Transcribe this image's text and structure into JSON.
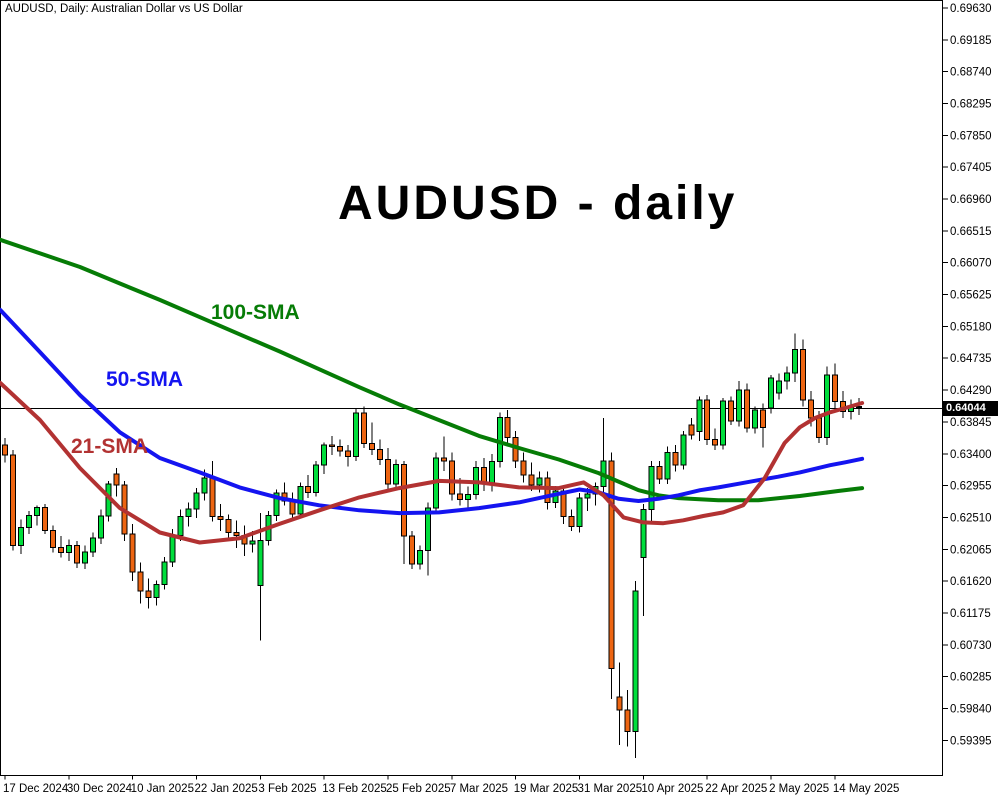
{
  "header": {
    "symbol_label": "AUDUSD, Daily:  Australian Dollar vs US Dollar"
  },
  "title": "AUDUSD - daily",
  "price_box": {
    "value": "0.64044"
  },
  "chart_data": {
    "type": "candlestick",
    "symbol": "AUDUSD",
    "timeframe": "Daily",
    "title": "AUDUSD - daily",
    "current_price": 0.64044,
    "ylim": [
      0.59395,
      0.6963
    ],
    "y_axis_labels": [
      "0.69630",
      "0.69185",
      "0.68740",
      "0.68295",
      "0.67850",
      "0.67405",
      "0.66960",
      "0.66515",
      "0.66070",
      "0.65625",
      "0.65180",
      "0.64735",
      "0.64290",
      "0.63845",
      "0.63400",
      "0.62955",
      "0.62510",
      "0.62065",
      "0.61620",
      "0.61175",
      "0.60730",
      "0.60285",
      "0.59840",
      "0.59395"
    ],
    "x_axis_labels": [
      {
        "index": 0,
        "label": "17 Dec 2024"
      },
      {
        "index": 8,
        "label": "30 Dec 2024"
      },
      {
        "index": 16,
        "label": "10 Jan 2025"
      },
      {
        "index": 24,
        "label": "22 Jan 2025"
      },
      {
        "index": 32,
        "label": "3 Feb 2025"
      },
      {
        "index": 40,
        "label": "13 Feb 2025"
      },
      {
        "index": 48,
        "label": "25 Feb 2025"
      },
      {
        "index": 56,
        "label": "7 Mar 2025"
      },
      {
        "index": 64,
        "label": "19 Mar 2025"
      },
      {
        "index": 72,
        "label": "31 Mar 2025"
      },
      {
        "index": 80,
        "label": "10 Apr 2025"
      },
      {
        "index": 88,
        "label": "22 Apr 2025"
      },
      {
        "index": 96,
        "label": "2 May 2025"
      },
      {
        "index": 104,
        "label": "14 May 2025"
      }
    ],
    "candles_format": [
      "open",
      "high",
      "low",
      "close"
    ],
    "candles": [
      [
        0.6352,
        0.6362,
        0.6328,
        0.6338
      ],
      [
        0.6338,
        0.6345,
        0.6205,
        0.6212
      ],
      [
        0.6212,
        0.6248,
        0.62,
        0.6237
      ],
      [
        0.6237,
        0.626,
        0.6228,
        0.6254
      ],
      [
        0.6254,
        0.6268,
        0.624,
        0.6265
      ],
      [
        0.6265,
        0.627,
        0.6228,
        0.6233
      ],
      [
        0.6233,
        0.624,
        0.6202,
        0.6209
      ],
      [
        0.6209,
        0.6225,
        0.6195,
        0.6202
      ],
      [
        0.6202,
        0.622,
        0.619,
        0.6212
      ],
      [
        0.6212,
        0.6218,
        0.618,
        0.6187
      ],
      [
        0.6187,
        0.6212,
        0.6179,
        0.6203
      ],
      [
        0.6203,
        0.623,
        0.6196,
        0.6222
      ],
      [
        0.6222,
        0.6262,
        0.6214,
        0.6253
      ],
      [
        0.6253,
        0.6302,
        0.6245,
        0.6298
      ],
      [
        0.6312,
        0.632,
        0.628,
        0.6296
      ],
      [
        0.6296,
        0.6302,
        0.6218,
        0.6228
      ],
      [
        0.6228,
        0.6242,
        0.6162,
        0.6175
      ],
      [
        0.6175,
        0.6188,
        0.6131,
        0.6148
      ],
      [
        0.6148,
        0.6166,
        0.6124,
        0.6139
      ],
      [
        0.6139,
        0.6163,
        0.6128,
        0.6157
      ],
      [
        0.6157,
        0.6196,
        0.615,
        0.6189
      ],
      [
        0.6189,
        0.6235,
        0.6182,
        0.6226
      ],
      [
        0.6226,
        0.6262,
        0.6218,
        0.6252
      ],
      [
        0.6252,
        0.6272,
        0.6238,
        0.6263
      ],
      [
        0.6263,
        0.6292,
        0.625,
        0.6285
      ],
      [
        0.6285,
        0.6318,
        0.6275,
        0.6306
      ],
      [
        0.6306,
        0.633,
        0.6245,
        0.6252
      ],
      [
        0.6252,
        0.627,
        0.6232,
        0.6248
      ],
      [
        0.6248,
        0.6255,
        0.622,
        0.623
      ],
      [
        0.623,
        0.6247,
        0.6208,
        0.6226
      ],
      [
        0.6226,
        0.624,
        0.6197,
        0.6214
      ],
      [
        0.6214,
        0.6232,
        0.6202,
        0.6218
      ],
      [
        0.6156,
        0.6257,
        0.6079,
        0.6219
      ],
      [
        0.6219,
        0.626,
        0.6212,
        0.6254
      ],
      [
        0.6254,
        0.629,
        0.6246,
        0.6285
      ],
      [
        0.6285,
        0.63,
        0.6268,
        0.6274
      ],
      [
        0.6274,
        0.6286,
        0.625,
        0.6256
      ],
      [
        0.6256,
        0.63,
        0.625,
        0.6294
      ],
      [
        0.6294,
        0.631,
        0.6278,
        0.6286
      ],
      [
        0.6286,
        0.633,
        0.628,
        0.6324
      ],
      [
        0.6324,
        0.6356,
        0.6312,
        0.6352
      ],
      [
        0.6352,
        0.6365,
        0.6338,
        0.635
      ],
      [
        0.635,
        0.636,
        0.6336,
        0.6344
      ],
      [
        0.6344,
        0.6352,
        0.6322,
        0.6336
      ],
      [
        0.6336,
        0.6404,
        0.633,
        0.6397
      ],
      [
        0.6397,
        0.6406,
        0.6348,
        0.6354
      ],
      [
        0.6354,
        0.6384,
        0.6338,
        0.6346
      ],
      [
        0.6346,
        0.636,
        0.6324,
        0.6332
      ],
      [
        0.6332,
        0.6348,
        0.629,
        0.6298
      ],
      [
        0.6298,
        0.6332,
        0.6292,
        0.6325
      ],
      [
        0.6325,
        0.633,
        0.6186,
        0.6225
      ],
      [
        0.6225,
        0.6232,
        0.6179,
        0.6186
      ],
      [
        0.6186,
        0.6212,
        0.6178,
        0.6205
      ],
      [
        0.6205,
        0.6272,
        0.617,
        0.6264
      ],
      [
        0.6264,
        0.6342,
        0.6256,
        0.6334
      ],
      [
        0.6334,
        0.6364,
        0.6316,
        0.633
      ],
      [
        0.633,
        0.6342,
        0.6275,
        0.6284
      ],
      [
        0.6284,
        0.6306,
        0.6268,
        0.6276
      ],
      [
        0.6276,
        0.6294,
        0.626,
        0.6283
      ],
      [
        0.6283,
        0.633,
        0.6276,
        0.6321
      ],
      [
        0.6321,
        0.6334,
        0.6288,
        0.6299
      ],
      [
        0.6299,
        0.634,
        0.6287,
        0.6329
      ],
      [
        0.6329,
        0.6398,
        0.6321,
        0.6391
      ],
      [
        0.6391,
        0.6401,
        0.6352,
        0.6363
      ],
      [
        0.6363,
        0.6372,
        0.632,
        0.633
      ],
      [
        0.633,
        0.6342,
        0.63,
        0.631
      ],
      [
        0.631,
        0.6328,
        0.6288,
        0.6296
      ],
      [
        0.6296,
        0.6315,
        0.6286,
        0.6306
      ],
      [
        0.6306,
        0.6315,
        0.6262,
        0.6272
      ],
      [
        0.6272,
        0.6295,
        0.6264,
        0.6288
      ],
      [
        0.6288,
        0.6296,
        0.6242,
        0.6252
      ],
      [
        0.6252,
        0.6262,
        0.6232,
        0.6238
      ],
      [
        0.6238,
        0.6285,
        0.623,
        0.6278
      ],
      [
        0.6278,
        0.6292,
        0.626,
        0.6284
      ],
      [
        0.6284,
        0.63,
        0.6268,
        0.6294
      ],
      [
        0.6294,
        0.639,
        0.6282,
        0.633
      ],
      [
        0.633,
        0.6342,
        0.5997,
        0.604
      ],
      [
        0.6,
        0.6048,
        0.5933,
        0.5982
      ],
      [
        0.5982,
        0.601,
        0.5931,
        0.5952
      ],
      [
        0.5952,
        0.6162,
        0.5915,
        0.6148
      ],
      [
        0.6195,
        0.627,
        0.6113,
        0.6262
      ],
      [
        0.6262,
        0.633,
        0.6246,
        0.6322
      ],
      [
        0.6322,
        0.633,
        0.6298,
        0.6305
      ],
      [
        0.6305,
        0.635,
        0.6298,
        0.6342
      ],
      [
        0.6342,
        0.6352,
        0.6315,
        0.6324
      ],
      [
        0.6324,
        0.6372,
        0.6318,
        0.6366
      ],
      [
        0.638,
        0.639,
        0.636,
        0.6366
      ],
      [
        0.6371,
        0.642,
        0.6358,
        0.6415
      ],
      [
        0.6415,
        0.6422,
        0.6352,
        0.636
      ],
      [
        0.636,
        0.6375,
        0.6345,
        0.6352
      ],
      [
        0.6352,
        0.6418,
        0.6346,
        0.6414
      ],
      [
        0.6414,
        0.642,
        0.638,
        0.6386
      ],
      [
        0.6386,
        0.6442,
        0.6378,
        0.6429
      ],
      [
        0.6429,
        0.6438,
        0.637,
        0.6376
      ],
      [
        0.6376,
        0.6406,
        0.6368,
        0.6401
      ],
      [
        0.6401,
        0.641,
        0.6349,
        0.6377
      ],
      [
        0.6404,
        0.645,
        0.6396,
        0.6446
      ],
      [
        0.6425,
        0.6452,
        0.6416,
        0.6442
      ],
      [
        0.6442,
        0.6462,
        0.643,
        0.6453
      ],
      [
        0.6453,
        0.6508,
        0.644,
        0.6486
      ],
      [
        0.6486,
        0.65,
        0.6406,
        0.6415
      ],
      [
        0.6415,
        0.6428,
        0.6378,
        0.639
      ],
      [
        0.639,
        0.64,
        0.6355,
        0.6363
      ],
      [
        0.6363,
        0.6462,
        0.6352,
        0.645
      ],
      [
        0.645,
        0.6466,
        0.6402,
        0.6413
      ],
      [
        0.6413,
        0.6428,
        0.639,
        0.6399
      ],
      [
        0.6399,
        0.6416,
        0.6388,
        0.6406
      ],
      [
        0.6406,
        0.6418,
        0.6394,
        0.64044
      ]
    ],
    "sma_series": [
      {
        "name": "100-SMA",
        "color": "#067C06",
        "points": [
          [
            -0.6,
            0.6639
          ],
          [
            4.4,
            0.662
          ],
          [
            9.4,
            0.6601
          ],
          [
            14.4,
            0.6578
          ],
          [
            19.4,
            0.6555
          ],
          [
            24.4,
            0.6531
          ],
          [
            29.4,
            0.6507
          ],
          [
            34.4,
            0.6483
          ],
          [
            39.4,
            0.6458
          ],
          [
            44.4,
            0.6433
          ],
          [
            49.4,
            0.6409
          ],
          [
            54.4,
            0.6387
          ],
          [
            59.4,
            0.6365
          ],
          [
            64.4,
            0.6348
          ],
          [
            69.4,
            0.6332
          ],
          [
            74.4,
            0.6313
          ],
          [
            79.4,
            0.6289
          ],
          [
            81.9,
            0.6282
          ],
          [
            84.4,
            0.6278
          ],
          [
            89.4,
            0.6275
          ],
          [
            94.4,
            0.6275
          ],
          [
            99.6,
            0.6281
          ],
          [
            104.4,
            0.6288
          ],
          [
            107.4,
            0.6292
          ]
        ]
      },
      {
        "name": "50-SMA",
        "color": "#1414F0",
        "points": [
          [
            -0.6,
            0.6541
          ],
          [
            4.4,
            0.6482
          ],
          [
            9.4,
            0.6422
          ],
          [
            14.4,
            0.637
          ],
          [
            19.4,
            0.6334
          ],
          [
            24.4,
            0.6314
          ],
          [
            29.4,
            0.6293
          ],
          [
            34.4,
            0.6278
          ],
          [
            39.4,
            0.6268
          ],
          [
            44.4,
            0.6261
          ],
          [
            49.4,
            0.6257
          ],
          [
            54.4,
            0.6258
          ],
          [
            59.4,
            0.6264
          ],
          [
            64.4,
            0.6272
          ],
          [
            69.4,
            0.6284
          ],
          [
            72.0,
            0.629
          ],
          [
            74.4,
            0.6286
          ],
          [
            76.9,
            0.6277
          ],
          [
            79.4,
            0.6274
          ],
          [
            81.9,
            0.6277
          ],
          [
            84.4,
            0.6282
          ],
          [
            87.1,
            0.6289
          ],
          [
            89.4,
            0.6293
          ],
          [
            91.9,
            0.6298
          ],
          [
            94.4,
            0.6303
          ],
          [
            96.9,
            0.6308
          ],
          [
            99.6,
            0.6314
          ],
          [
            101.5,
            0.6319
          ],
          [
            103.4,
            0.6324
          ],
          [
            105.3,
            0.6328
          ],
          [
            107.4,
            0.6333
          ]
        ]
      },
      {
        "name": "21-SMA",
        "color": "#B23232",
        "points": [
          [
            -0.6,
            0.6439
          ],
          [
            4.4,
            0.6387
          ],
          [
            9.4,
            0.632
          ],
          [
            14.4,
            0.6264
          ],
          [
            19.4,
            0.623
          ],
          [
            24.4,
            0.6216
          ],
          [
            29.4,
            0.6222
          ],
          [
            34.4,
            0.6242
          ],
          [
            39.4,
            0.6261
          ],
          [
            44.4,
            0.6279
          ],
          [
            49.4,
            0.6292
          ],
          [
            54.4,
            0.6302
          ],
          [
            59.4,
            0.63
          ],
          [
            64.4,
            0.6293
          ],
          [
            69.4,
            0.6292
          ],
          [
            72.5,
            0.63
          ],
          [
            75.0,
            0.6282
          ],
          [
            77.5,
            0.6251
          ],
          [
            80.0,
            0.6244
          ],
          [
            82.5,
            0.6243
          ],
          [
            85.0,
            0.6247
          ],
          [
            87.5,
            0.6253
          ],
          [
            90.0,
            0.6258
          ],
          [
            92.5,
            0.6268
          ],
          [
            95.2,
            0.6306
          ],
          [
            97.7,
            0.6355
          ],
          [
            99.6,
            0.6377
          ],
          [
            101.5,
            0.639
          ],
          [
            103.4,
            0.6398
          ],
          [
            105.3,
            0.6404
          ],
          [
            107.4,
            0.6411
          ]
        ]
      }
    ],
    "colors": {
      "bull_candle": "#00DE3C",
      "bear_candle": "#ED6512",
      "candle_outline": "#000000",
      "wick": "#000000",
      "axis": "#000000",
      "current_price_bg": "#000000",
      "current_price_text": "#FFFFFF"
    },
    "legend_position": "on-chart-labels",
    "grid": false
  }
}
